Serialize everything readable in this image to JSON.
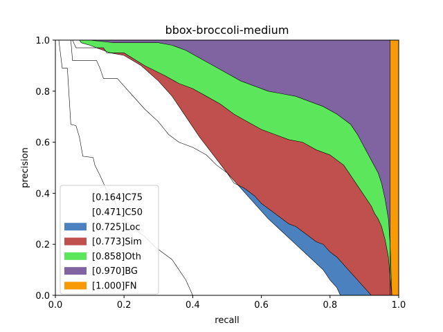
{
  "chart_data": {
    "type": "area",
    "title": "bbox-broccoli-medium",
    "xlabel": "recall",
    "ylabel": "precision",
    "xlim": [
      0.0,
      1.0
    ],
    "ylim": [
      0.0,
      1.0
    ],
    "xticks": [
      "0.0",
      "0.2",
      "0.4",
      "0.6",
      "0.8",
      "1.0"
    ],
    "yticks": [
      "0.0",
      "0.2",
      "0.4",
      "0.6",
      "0.8",
      "1.0"
    ],
    "grid": false,
    "legend_position": "lower-left",
    "series": [
      {
        "name": "[0.164]C75",
        "color": "#ffffff",
        "line": [
          [
            0.0,
            1.0
          ],
          [
            0.01,
            1.0
          ],
          [
            0.02,
            0.89
          ],
          [
            0.035,
            0.89
          ],
          [
            0.045,
            0.67
          ],
          [
            0.06,
            0.665
          ],
          [
            0.07,
            0.62
          ],
          [
            0.08,
            0.545
          ],
          [
            0.11,
            0.54
          ],
          [
            0.115,
            0.51
          ],
          [
            0.13,
            0.47
          ],
          [
            0.15,
            0.41
          ],
          [
            0.17,
            0.38
          ],
          [
            0.19,
            0.31
          ],
          [
            0.22,
            0.27
          ],
          [
            0.26,
            0.23
          ],
          [
            0.29,
            0.19
          ],
          [
            0.32,
            0.16
          ],
          [
            0.34,
            0.14
          ],
          [
            0.36,
            0.1
          ],
          [
            0.38,
            0.06
          ],
          [
            0.39,
            0.03
          ],
          [
            0.4,
            0.0
          ]
        ]
      },
      {
        "name": "[0.471]C50",
        "color": "#ffffff",
        "line": [
          [
            0.0,
            1.0
          ],
          [
            0.07,
            1.0
          ],
          [
            0.075,
            0.99
          ],
          [
            0.1,
            0.98
          ],
          [
            0.12,
            0.97
          ],
          [
            0.14,
            0.96
          ],
          [
            0.16,
            0.95
          ],
          [
            0.2,
            0.94
          ],
          [
            0.25,
            0.9
          ],
          [
            0.3,
            0.84
          ],
          [
            0.34,
            0.78
          ],
          [
            0.38,
            0.7
          ],
          [
            0.42,
            0.62
          ],
          [
            0.46,
            0.55
          ],
          [
            0.5,
            0.48
          ],
          [
            0.54,
            0.42
          ],
          [
            0.58,
            0.36
          ],
          [
            0.62,
            0.3
          ],
          [
            0.66,
            0.25
          ],
          [
            0.7,
            0.2
          ],
          [
            0.74,
            0.15
          ],
          [
            0.78,
            0.1
          ],
          [
            0.8,
            0.06
          ],
          [
            0.82,
            0.03
          ],
          [
            0.83,
            0.0
          ]
        ]
      },
      {
        "name": "[0.725]Loc",
        "color": "#4c81bf",
        "line": [
          [
            0.0,
            1.0
          ],
          [
            0.045,
            1.0
          ],
          [
            0.05,
            0.92
          ],
          [
            0.12,
            0.92
          ],
          [
            0.13,
            0.89
          ],
          [
            0.14,
            0.85
          ],
          [
            0.18,
            0.85
          ],
          [
            0.22,
            0.79
          ],
          [
            0.26,
            0.73
          ],
          [
            0.3,
            0.68
          ],
          [
            0.33,
            0.63
          ],
          [
            0.36,
            0.6
          ],
          [
            0.4,
            0.58
          ],
          [
            0.44,
            0.55
          ],
          [
            0.47,
            0.51
          ],
          [
            0.5,
            0.48
          ],
          [
            0.52,
            0.44
          ],
          [
            0.55,
            0.42
          ],
          [
            0.58,
            0.39
          ],
          [
            0.6,
            0.36
          ],
          [
            0.62,
            0.34
          ],
          [
            0.64,
            0.32
          ],
          [
            0.66,
            0.3
          ],
          [
            0.68,
            0.28
          ],
          [
            0.7,
            0.27
          ],
          [
            0.72,
            0.25
          ],
          [
            0.74,
            0.23
          ],
          [
            0.76,
            0.21
          ],
          [
            0.78,
            0.2
          ],
          [
            0.8,
            0.17
          ],
          [
            0.82,
            0.15
          ],
          [
            0.84,
            0.12
          ],
          [
            0.86,
            0.09
          ],
          [
            0.88,
            0.06
          ],
          [
            0.9,
            0.03
          ],
          [
            0.92,
            0.0
          ],
          [
            0.97,
            0.0
          ]
        ]
      },
      {
        "name": "[0.773]Sim",
        "color": "#c0504d",
        "line": [
          [
            0.0,
            1.0
          ],
          [
            0.05,
            1.0
          ],
          [
            0.06,
            0.97
          ],
          [
            0.14,
            0.97
          ],
          [
            0.15,
            0.95
          ],
          [
            0.2,
            0.95
          ],
          [
            0.26,
            0.9
          ],
          [
            0.32,
            0.86
          ],
          [
            0.36,
            0.83
          ],
          [
            0.4,
            0.81
          ],
          [
            0.44,
            0.78
          ],
          [
            0.48,
            0.75
          ],
          [
            0.52,
            0.71
          ],
          [
            0.56,
            0.68
          ],
          [
            0.6,
            0.65
          ],
          [
            0.64,
            0.63
          ],
          [
            0.68,
            0.61
          ],
          [
            0.72,
            0.6
          ],
          [
            0.76,
            0.57
          ],
          [
            0.8,
            0.55
          ],
          [
            0.84,
            0.51
          ],
          [
            0.86,
            0.47
          ],
          [
            0.88,
            0.43
          ],
          [
            0.9,
            0.39
          ],
          [
            0.92,
            0.35
          ],
          [
            0.93,
            0.32
          ],
          [
            0.94,
            0.3
          ],
          [
            0.95,
            0.27
          ],
          [
            0.96,
            0.22
          ],
          [
            0.97,
            0.15
          ],
          [
            0.98,
            0.0
          ]
        ]
      },
      {
        "name": "[0.858]Oth",
        "color": "#5ce65c",
        "line": [
          [
            0.0,
            1.0
          ],
          [
            0.1,
            1.0
          ],
          [
            0.17,
            0.99
          ],
          [
            0.3,
            0.99
          ],
          [
            0.34,
            0.98
          ],
          [
            0.38,
            0.96
          ],
          [
            0.42,
            0.93
          ],
          [
            0.46,
            0.9
          ],
          [
            0.5,
            0.87
          ],
          [
            0.54,
            0.84
          ],
          [
            0.58,
            0.82
          ],
          [
            0.62,
            0.8
          ],
          [
            0.66,
            0.79
          ],
          [
            0.7,
            0.78
          ],
          [
            0.74,
            0.76
          ],
          [
            0.78,
            0.74
          ],
          [
            0.82,
            0.71
          ],
          [
            0.86,
            0.67
          ],
          [
            0.88,
            0.63
          ],
          [
            0.9,
            0.58
          ],
          [
            0.92,
            0.53
          ],
          [
            0.94,
            0.48
          ],
          [
            0.95,
            0.44
          ],
          [
            0.96,
            0.38
          ],
          [
            0.97,
            0.3
          ],
          [
            0.975,
            0.2
          ],
          [
            0.98,
            0.0
          ]
        ]
      },
      {
        "name": "[0.970]BG",
        "color": "#8064a2",
        "line": [
          [
            0.0,
            1.0
          ],
          [
            0.975,
            1.0
          ],
          [
            0.975,
            0.0
          ],
          [
            0.98,
            0.0
          ]
        ]
      },
      {
        "name": "[1.000]FN",
        "color": "#f79a06",
        "line": [
          [
            0.0,
            1.0
          ],
          [
            1.0,
            1.0
          ],
          [
            1.0,
            0.0
          ]
        ]
      }
    ]
  }
}
